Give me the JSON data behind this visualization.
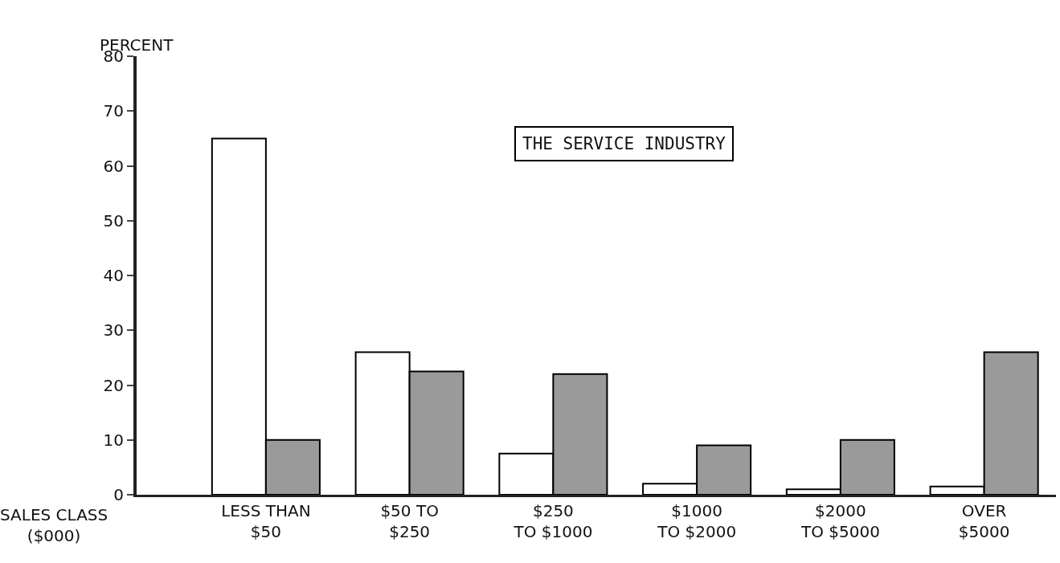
{
  "chart_data": {
    "type": "bar",
    "title": "THE SERVICE INDUSTRY",
    "ylabel": "PERCENT",
    "xlabel": "SALES CLASS\n($000)",
    "categories": [
      "LESS THAN\n$50",
      "$50 TO\n$250",
      "$250\nTO $1000",
      "$1000\nTO $2000",
      "$2000\nTO $5000",
      "OVER\n$5000"
    ],
    "series": [
      {
        "color": "#ffffff",
        "values": [
          65,
          26,
          7.5,
          2,
          1,
          1.5
        ]
      },
      {
        "color": "#9a9a9a",
        "values": [
          10,
          22.5,
          22,
          9,
          10,
          26
        ]
      }
    ],
    "ylim": [
      0,
      80
    ],
    "yticks": [
      0,
      10,
      20,
      30,
      40,
      50,
      60,
      70,
      80
    ],
    "grid": false
  }
}
